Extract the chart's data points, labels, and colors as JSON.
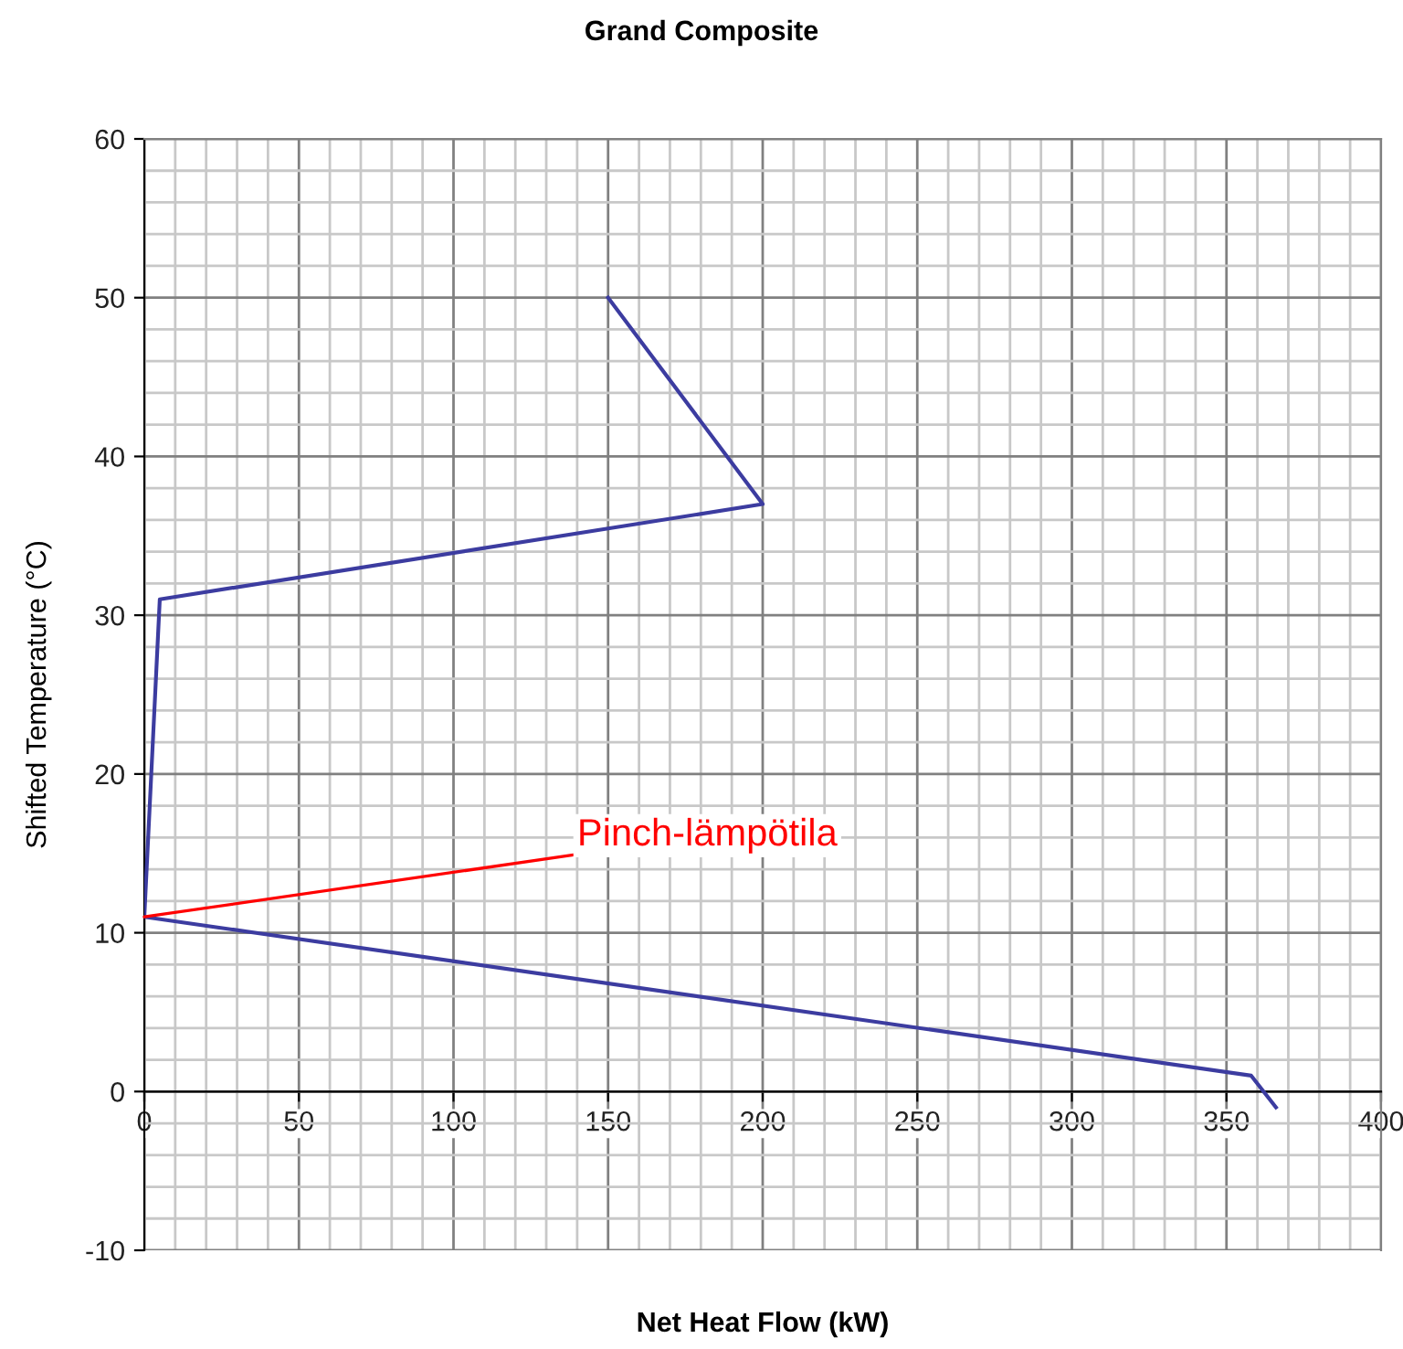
{
  "chart_data": {
    "type": "line",
    "title": "Grand Composite",
    "xlabel": "Net Heat Flow (kW)",
    "ylabel": "Shifted Temperature (°C)",
    "series": [
      {
        "color": "#3c3ca0",
        "x": [
          150,
          200,
          5,
          0,
          358,
          366
        ],
        "values": [
          50,
          37,
          31,
          11,
          1,
          -1
        ]
      }
    ],
    "xlim": [
      0,
      400
    ],
    "ylim": [
      -10,
      60
    ],
    "xticks": [
      0,
      50,
      100,
      150,
      200,
      250,
      300,
      350,
      400
    ],
    "yticks": [
      -10,
      0,
      10,
      20,
      30,
      40,
      50,
      60
    ],
    "grid": true,
    "marker": "none",
    "line_style": "solid",
    "annotations": [
      {
        "text": "Pinch-lämpötila",
        "x": 0,
        "y": 11
      }
    ]
  }
}
